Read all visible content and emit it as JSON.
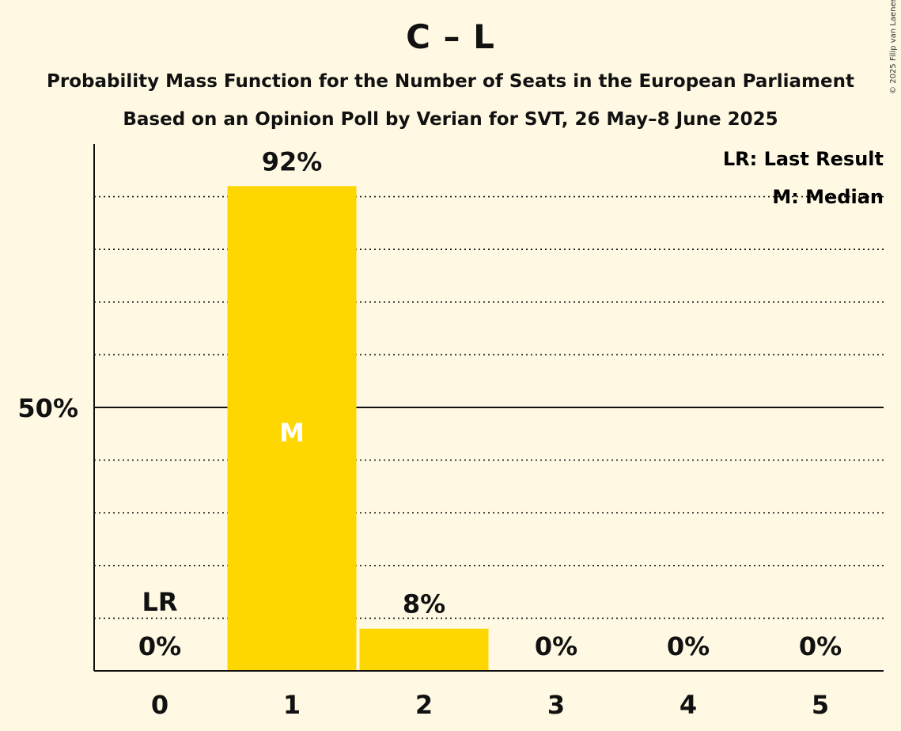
{
  "title": "C – L",
  "subtitle1": "Probability Mass Function for the Number of Seats in the European Parliament",
  "subtitle2": "Based on an Opinion Poll by Verian for SVT, 26 May–8 June 2025",
  "copyright": "© 2025 Filip van Laenen",
  "legend": {
    "last_result": "LR: Last Result",
    "median": "M: Median"
  },
  "colors": {
    "background": "#FFF9E3",
    "bar": "#FFD700",
    "axis": "#111111"
  },
  "chart_data": {
    "type": "bar",
    "categories": [
      "0",
      "1",
      "2",
      "3",
      "4",
      "5"
    ],
    "values": [
      0,
      92,
      8,
      0,
      0,
      0
    ],
    "value_labels": [
      "0%",
      "92%",
      "8%",
      "0%",
      "0%",
      "0%"
    ],
    "ylim": [
      0,
      100
    ],
    "yticks": [
      50
    ],
    "ytick_labels": [
      "50%"
    ],
    "gridlines": [
      10,
      20,
      30,
      40,
      60,
      70,
      80,
      90
    ],
    "last_result_category": "0",
    "last_result_label": "LR",
    "median_category": "1",
    "median_label": "M"
  }
}
